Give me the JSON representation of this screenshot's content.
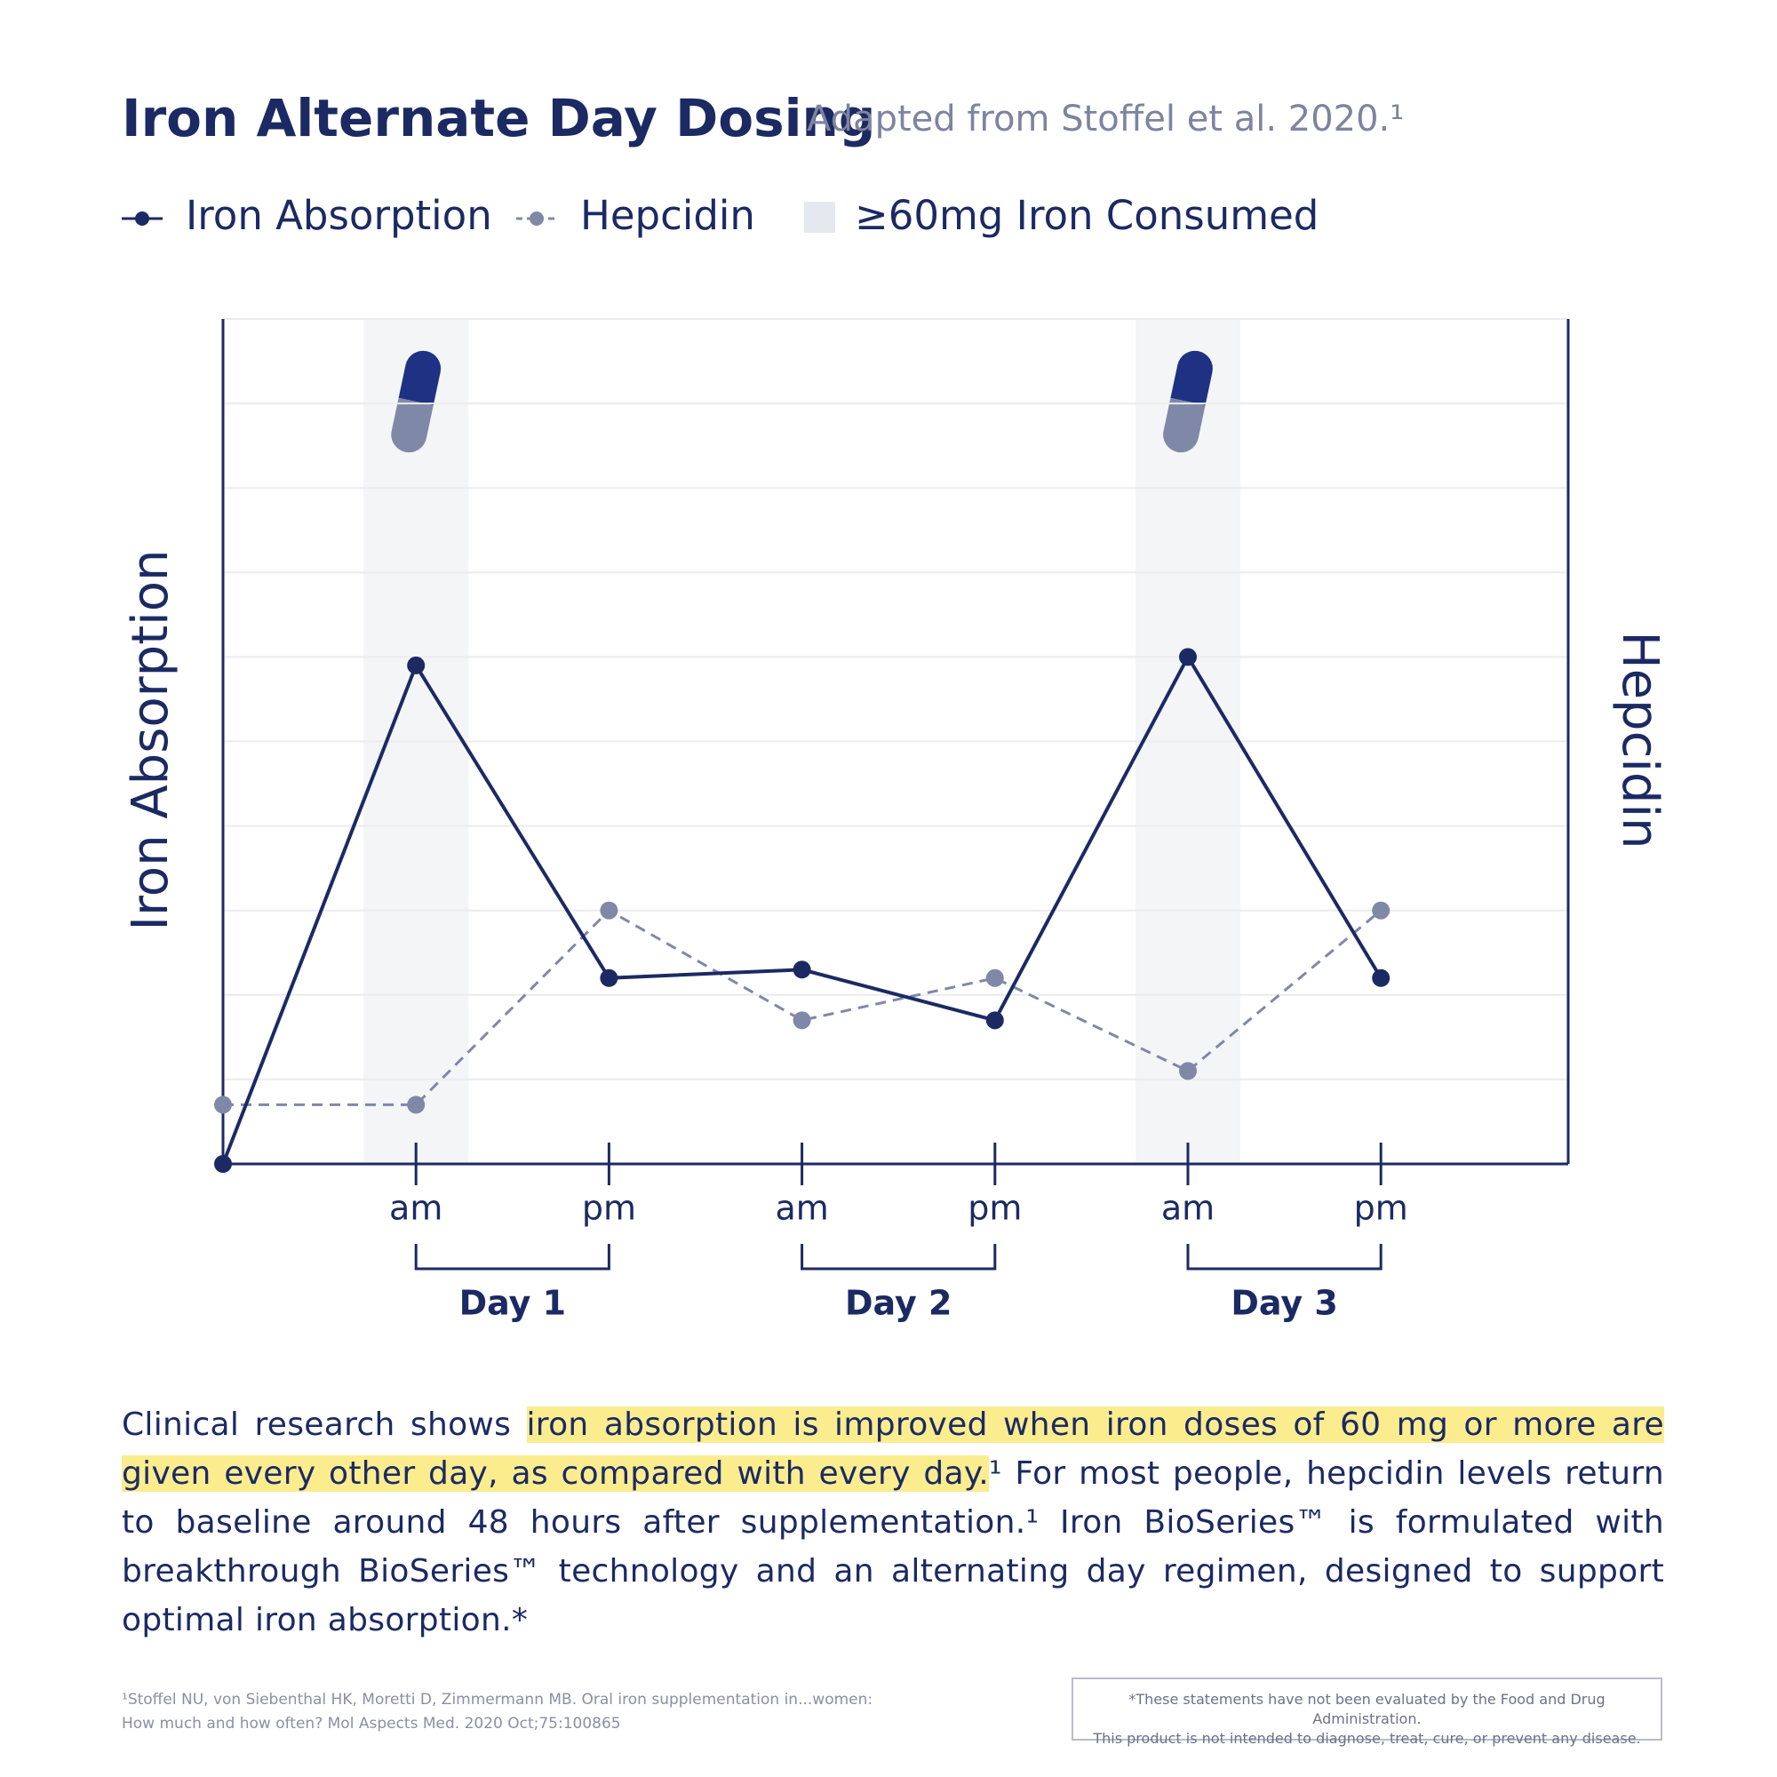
{
  "chart_data": {
    "type": "line",
    "title": "Iron Alternate Day Dosing",
    "subtitle": "Adapted from Stoffel et al. 2020.¹",
    "y_label": "Iron Absorption",
    "y2_label": "Hepcidin",
    "categories": [
      null,
      "am",
      "pm",
      "am",
      "pm",
      "am",
      "pm"
    ],
    "day_labels": [
      "Day 1",
      "Day 2",
      "Day 3"
    ],
    "series": [
      {
        "name": "Iron Absorption",
        "color": "#1c2a63",
        "dashed": false,
        "values": [
          0,
          5.9,
          2.2,
          2.3,
          1.7,
          6.0,
          2.2
        ]
      },
      {
        "name": "Hepcidin",
        "color": "#8088a8",
        "dashed": true,
        "values": [
          0.7,
          0.7,
          3.0,
          1.7,
          2.2,
          1.1,
          3.0
        ]
      }
    ],
    "highlight": {
      "name": "≥60mg Iron Consumed",
      "color": "#e6e8f0",
      "categories": [
        1,
        5
      ]
    },
    "ylim": [
      0,
      10
    ],
    "yticks": [
      0,
      1,
      2,
      3,
      4,
      5,
      6,
      7,
      8,
      9,
      10
    ],
    "grid": true
  },
  "body": {
    "before": "Clinical research shows ",
    "highlight": "iron absorption is improved when iron doses of 60 mg or more are given every other day, as compared with every day.",
    "after": "¹ For most people, hepcidin levels return to baseline around 48 hours after supplementation.¹ Iron BioSeries™ is formulated with breakthrough BioSeries™ technology and an alternating day regimen, designed to support optimal iron absorption.*"
  },
  "footnote": [
    "¹Stoffel NU, von Siebenthal HK, Moretti D, Zimmermann MB. Oral iron supplementation in...women:",
    "How much and how often? Mol Aspects Med. 2020 Oct;75:100865"
  ],
  "disclaimer": [
    "*These statements have not been evaluated by the Food and Drug Administration.",
    "This product is not intended to diagnose, treat, cure, or prevent any disease."
  ]
}
